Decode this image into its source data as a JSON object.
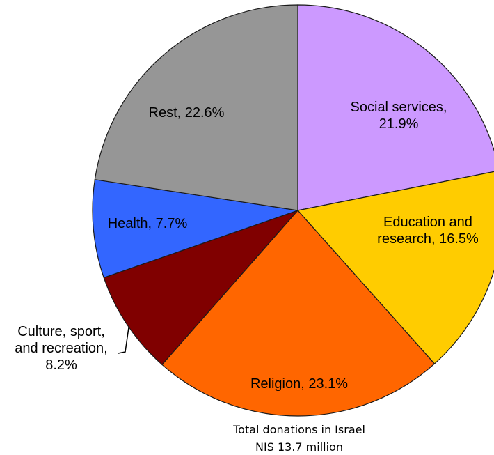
{
  "chart_data": {
    "type": "pie",
    "slices": [
      {
        "label_lines": [
          "Social services,",
          "21.9%"
        ],
        "name": "Social services",
        "value": 21.9,
        "color": "#CC99FF"
      },
      {
        "label_lines": [
          "Education and",
          "research, 16.5%"
        ],
        "name": "Education and research",
        "value": 16.5,
        "color": "#FFCC00"
      },
      {
        "label_lines": [
          "Religion, 23.1%"
        ],
        "name": "Religion",
        "value": 23.1,
        "color": "#FF6600"
      },
      {
        "label_lines": [
          "Culture, sport,",
          "and recreation,",
          "8.2%"
        ],
        "name": "Culture, sport, and recreation",
        "value": 8.2,
        "color": "#800000"
      },
      {
        "label_lines": [
          "Health, 7.7%"
        ],
        "name": "Health",
        "value": 7.7,
        "color": "#3366FF"
      },
      {
        "label_lines": [
          "Rest, 22.6%"
        ],
        "name": "Rest",
        "value": 22.6,
        "color": "#969696"
      }
    ],
    "caption": [
      "Total donations in Israel",
      "NIS 13.7 million"
    ]
  }
}
